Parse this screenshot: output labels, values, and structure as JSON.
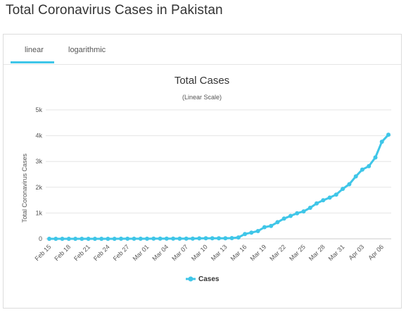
{
  "page": {
    "title": "Total Coronavirus Cases in Pakistan"
  },
  "tabs": [
    {
      "label": "linear",
      "active": true
    },
    {
      "label": "logarithmic",
      "active": false
    }
  ],
  "colors": {
    "accent": "#3fc6e8",
    "gridline": "#e6e6e6",
    "text": "#333333"
  },
  "chart_data": {
    "type": "line",
    "title": "Total Cases",
    "subtitle": "(Linear Scale)",
    "ylabel": "Total Coronavirus Cases",
    "xlabel": "",
    "ylim": [
      0,
      5000
    ],
    "yticks": [
      0,
      1000,
      2000,
      3000,
      4000,
      5000
    ],
    "ytick_labels": [
      "0",
      "1k",
      "2k",
      "3k",
      "4k",
      "5k"
    ],
    "xtick_labels": [
      "Feb 15",
      "Feb 18",
      "Feb 21",
      "Feb 24",
      "Feb 27",
      "Mar 01",
      "Mar 04",
      "Mar 07",
      "Mar 10",
      "Mar 13",
      "Mar 16",
      "Mar 19",
      "Mar 22",
      "Mar 25",
      "Mar 28",
      "Mar 31",
      "Apr 03",
      "Apr 06"
    ],
    "grid": true,
    "legend": "bottom-center",
    "categories": [
      "Feb 15",
      "Feb 16",
      "Feb 17",
      "Feb 18",
      "Feb 19",
      "Feb 20",
      "Feb 21",
      "Feb 22",
      "Feb 23",
      "Feb 24",
      "Feb 25",
      "Feb 26",
      "Feb 27",
      "Feb 28",
      "Feb 29",
      "Mar 01",
      "Mar 02",
      "Mar 03",
      "Mar 04",
      "Mar 05",
      "Mar 06",
      "Mar 07",
      "Mar 08",
      "Mar 09",
      "Mar 10",
      "Mar 11",
      "Mar 12",
      "Mar 13",
      "Mar 14",
      "Mar 15",
      "Mar 16",
      "Mar 17",
      "Mar 18",
      "Mar 19",
      "Mar 20",
      "Mar 21",
      "Mar 22",
      "Mar 23",
      "Mar 24",
      "Mar 25",
      "Mar 26",
      "Mar 27",
      "Mar 28",
      "Mar 29",
      "Mar 30",
      "Mar 31",
      "Apr 01",
      "Apr 02",
      "Apr 03",
      "Apr 04",
      "Apr 05",
      "Apr 06",
      "Apr 07"
    ],
    "series": [
      {
        "name": "Cases",
        "color": "#3fc6e8",
        "values": [
          0,
          0,
          0,
          0,
          0,
          0,
          0,
          0,
          0,
          0,
          0,
          2,
          2,
          2,
          4,
          4,
          5,
          5,
          5,
          5,
          6,
          6,
          6,
          16,
          19,
          19,
          20,
          21,
          28,
          53,
          187,
          241,
          301,
          451,
          501,
          646,
          784,
          887,
          991,
          1063,
          1201,
          1373,
          1495,
          1597,
          1717,
          1938,
          2118,
          2421,
          2686,
          2818,
          3157,
          3766,
          4035
        ]
      }
    ]
  }
}
